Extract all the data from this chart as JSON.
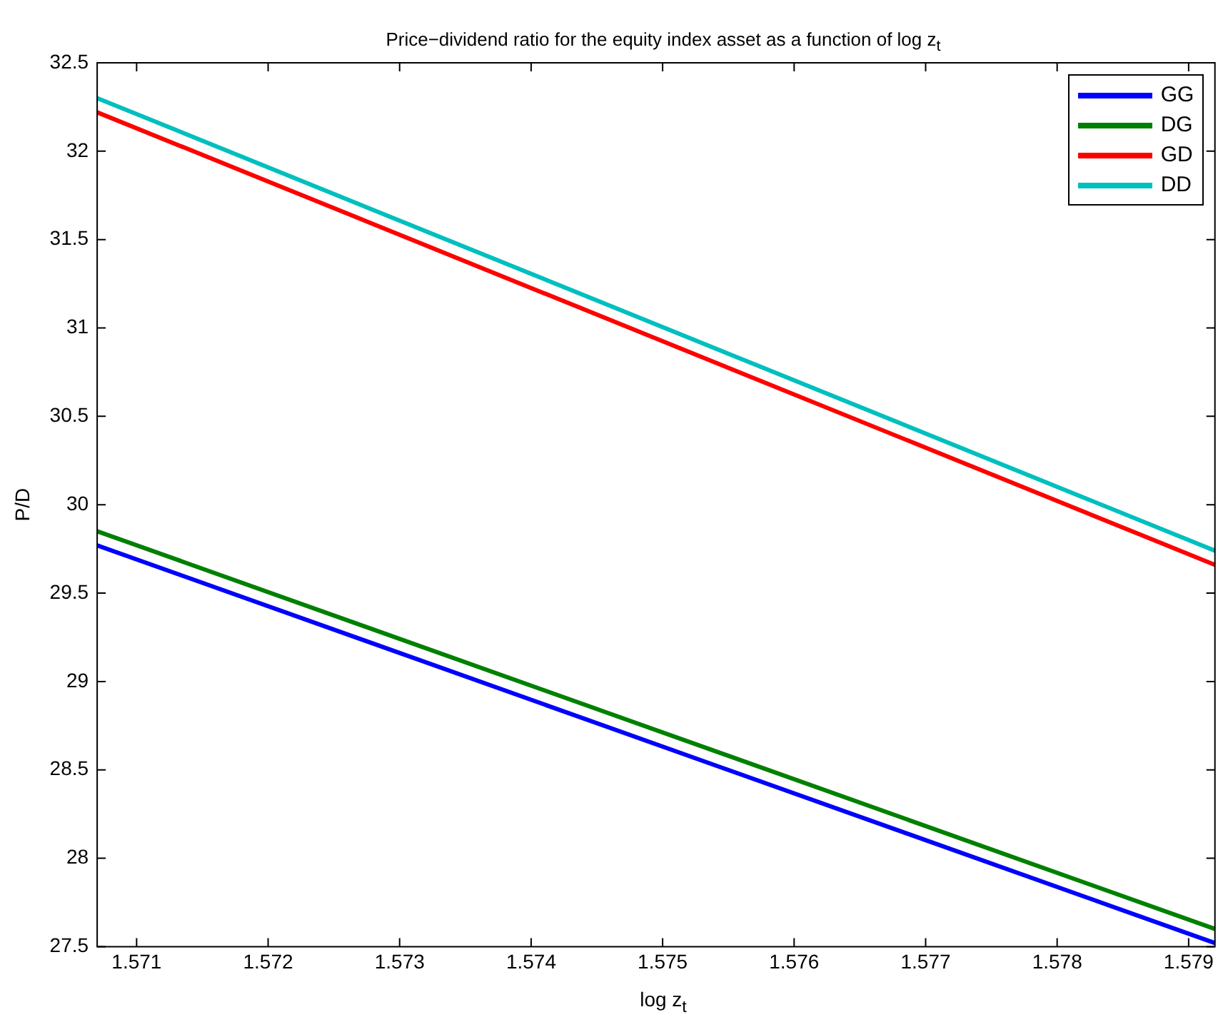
{
  "chart_data": {
    "type": "line",
    "title": "Price−dividend ratio for the equity index asset as a function of log z$_{t}$",
    "xlabel": "log z$_{t}$",
    "ylabel": "P/D",
    "x": [
      1.5707,
      1.5792
    ],
    "series": [
      {
        "name": "GG",
        "color": "#0000ff",
        "values": [
          29.77,
          27.52
        ]
      },
      {
        "name": "DG",
        "color": "#008000",
        "values": [
          29.85,
          27.6
        ]
      },
      {
        "name": "GD",
        "color": "#ff0000",
        "values": [
          32.22,
          29.66
        ]
      },
      {
        "name": "DD",
        "color": "#00bfbf",
        "values": [
          32.3,
          29.74
        ]
      }
    ],
    "xlim": [
      1.5707,
      1.5792
    ],
    "xticks": [
      1.571,
      1.572,
      1.573,
      1.574,
      1.575,
      1.576,
      1.577,
      1.578,
      1.579
    ],
    "ylim": [
      27.5,
      32.5
    ],
    "yticks": [
      27.5,
      28,
      28.5,
      29,
      29.5,
      30,
      30.5,
      31,
      31.5,
      32,
      32.5
    ],
    "grid": false,
    "legend": "top right",
    "marker": "none",
    "line_style": "solid"
  }
}
